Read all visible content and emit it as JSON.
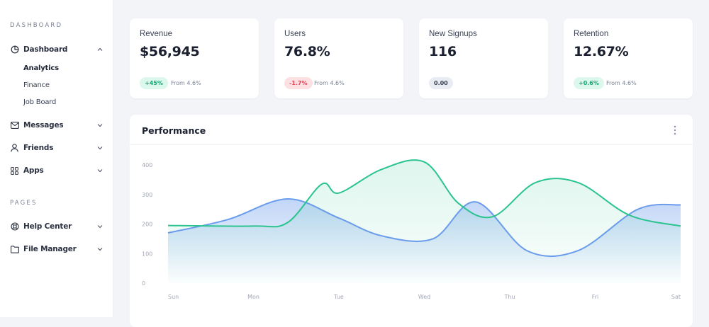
{
  "sidebar": {
    "dashboard_section": "DASHBOARD",
    "pages_section": "PAGES",
    "items": [
      {
        "label": "Dashboard",
        "icon": "dashboard-icon",
        "expanded": true,
        "children": [
          {
            "label": "Analytics",
            "active": true
          },
          {
            "label": "Finance"
          },
          {
            "label": "Job Board"
          }
        ]
      },
      {
        "label": "Messages",
        "icon": "envelope-icon"
      },
      {
        "label": "Friends",
        "icon": "user-icon"
      },
      {
        "label": "Apps",
        "icon": "grid-icon"
      },
      {
        "label": "Help Center",
        "icon": "lifebuoy-icon"
      },
      {
        "label": "File Manager",
        "icon": "folder-icon"
      }
    ]
  },
  "cards": [
    {
      "title": "Revenue",
      "value": "$56,945",
      "badge": "+45%",
      "badge_type": "up",
      "from": "From 4.6%"
    },
    {
      "title": "Users",
      "value": "76.8%",
      "badge": "-1.7%",
      "badge_type": "down",
      "from": "From 4.6%"
    },
    {
      "title": "New Signups",
      "value": "116",
      "badge": "0.00",
      "badge_type": "neutral",
      "from": ""
    },
    {
      "title": "Retention",
      "value": "12.67%",
      "badge": "+0.6%",
      "badge_type": "up",
      "from": "From 4.6%"
    }
  ],
  "performance": {
    "title": "Performance",
    "menu_icon": "more-vertical-icon"
  },
  "colors": {
    "blue": "#6b9cec",
    "green": "#2bc48e",
    "badge_up_bg": "#dcf7ec",
    "badge_down_bg": "#fde0e2"
  },
  "chart_data": {
    "type": "area",
    "title": "Performance",
    "categories": [
      "Sun",
      "Mon",
      "Tue",
      "Wed",
      "Thu",
      "Fri",
      "Sat"
    ],
    "ylim": [
      0,
      400
    ],
    "yticks": [
      0,
      100,
      200,
      300,
      400
    ],
    "grid": false,
    "series": [
      {
        "color": "#6b9cec",
        "x": [
          0,
          0.7,
          1.4,
          2.0,
          2.5,
          3.1,
          3.6,
          4.2,
          4.8,
          5.5,
          6.0
        ],
        "y": [
          170,
          215,
          285,
          220,
          160,
          150,
          275,
          110,
          110,
          250,
          265
        ]
      },
      {
        "color": "#2bc48e",
        "x": [
          0,
          1.0,
          1.4,
          1.8,
          2.0,
          2.5,
          3.0,
          3.4,
          3.8,
          4.3,
          4.8,
          5.4,
          6.0
        ],
        "y": [
          195,
          193,
          205,
          335,
          305,
          385,
          410,
          270,
          225,
          340,
          340,
          230,
          193
        ]
      }
    ]
  }
}
